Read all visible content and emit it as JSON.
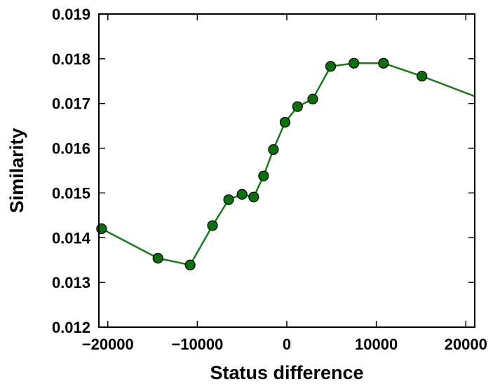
{
  "chart_data": {
    "type": "line",
    "title": "",
    "xlabel": "Status difference",
    "ylabel": "Similarity",
    "xlim": [
      -21000,
      21000
    ],
    "ylim": [
      0.012,
      0.019
    ],
    "x_ticks": [
      -20000,
      -10000,
      0,
      10000,
      20000
    ],
    "x_tick_labels": [
      "−20000",
      "−10000",
      "0",
      "10000",
      "20000"
    ],
    "y_ticks": [
      0.012,
      0.013,
      0.014,
      0.015,
      0.016,
      0.017,
      0.018,
      0.019
    ],
    "y_tick_labels": [
      "0.012",
      "0.013",
      "0.014",
      "0.015",
      "0.016",
      "0.017",
      "0.018",
      "0.019"
    ],
    "grid": false,
    "colors": {
      "line": "#1a7a1a",
      "marker_fill": "#0c6e0c",
      "marker_edge": "#000000"
    },
    "series": [
      {
        "points": [
          {
            "x": -20700,
            "y": 0.0142
          },
          {
            "x": -14400,
            "y": 0.01354
          },
          {
            "x": -10800,
            "y": 0.01339
          },
          {
            "x": -8300,
            "y": 0.01427
          },
          {
            "x": -6500,
            "y": 0.01485
          },
          {
            "x": -5000,
            "y": 0.01497
          },
          {
            "x": -3700,
            "y": 0.01491
          },
          {
            "x": -2600,
            "y": 0.01538
          },
          {
            "x": -1500,
            "y": 0.01597
          },
          {
            "x": -200,
            "y": 0.01658
          },
          {
            "x": 1200,
            "y": 0.01693
          },
          {
            "x": 2900,
            "y": 0.0171
          },
          {
            "x": 4900,
            "y": 0.01783
          },
          {
            "x": 7500,
            "y": 0.0179
          },
          {
            "x": 10800,
            "y": 0.0179
          },
          {
            "x": 15100,
            "y": 0.01761
          }
        ],
        "line_end": {
          "x": 21000,
          "y": 0.01716
        }
      }
    ]
  }
}
